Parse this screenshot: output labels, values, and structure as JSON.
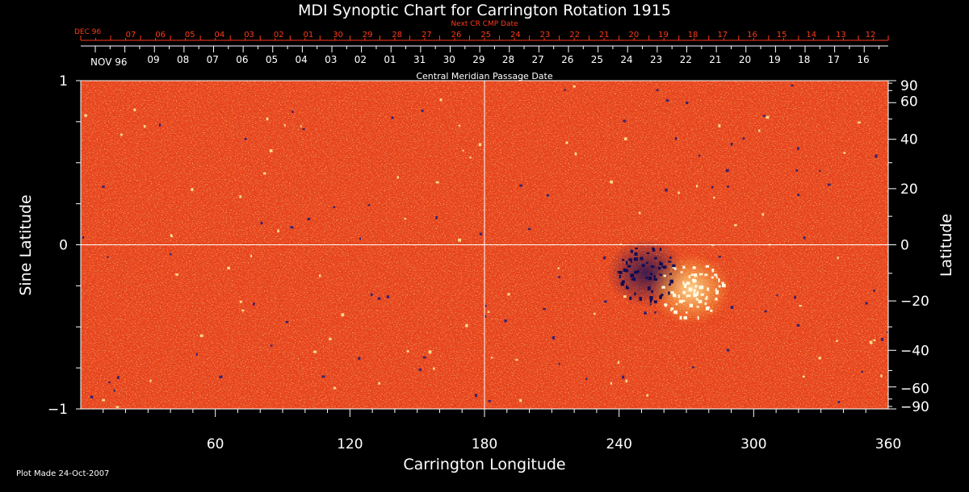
{
  "colors": {
    "background": "#000000",
    "foreground": "#ffffff",
    "next_rotation": "#ff3a1a",
    "map_base": "#e8401a",
    "map_positive": "#ffd23a",
    "map_negative": "#1a1a7a",
    "grid": "#ffffff"
  },
  "chart_data": {
    "type": "heatmap",
    "title": "MDI Synoptic Chart for Carrington Rotation 1915",
    "xlabel": "Carrington Longitude",
    "ylabel_left": "Sine Latitude",
    "ylabel_right": "Latitude",
    "xlim": [
      0,
      360
    ],
    "ylim": [
      -1,
      1
    ],
    "x_ticks": [
      60,
      120,
      180,
      240,
      300,
      360
    ],
    "y_left_ticks": [
      -1,
      0,
      1
    ],
    "y_left_tick_labels": [
      "−1",
      "0",
      "1"
    ],
    "y_right_ticks": [
      90,
      60,
      40,
      20,
      0,
      -20,
      -40,
      -60,
      -90
    ],
    "y_right_tick_labels": [
      "90",
      "60",
      "40",
      "20",
      "0",
      "−20",
      "−40",
      "−60",
      "−90"
    ],
    "grid_lines": {
      "longitude": [
        180
      ],
      "sine_latitude": [
        0
      ]
    },
    "top_axis": {
      "label": "Central Meridian Passage Date",
      "month_start_label": "NOV 96",
      "dates": [
        "09",
        "08",
        "07",
        "06",
        "05",
        "04",
        "03",
        "02",
        "01",
        "31",
        "30",
        "29",
        "28",
        "27",
        "26",
        "25",
        "24",
        "23",
        "22",
        "21",
        "20",
        "19",
        "18",
        "17",
        "16"
      ],
      "next_rotation_label": "Next CR CMP Date",
      "next_rotation_month_label": "DEC 96",
      "next_rotation_dates": [
        "07",
        "06",
        "05",
        "04",
        "03",
        "02",
        "01",
        "30",
        "29",
        "28",
        "27",
        "26",
        "25",
        "24",
        "23",
        "22",
        "21",
        "20",
        "19",
        "18",
        "17",
        "16",
        "15",
        "14",
        "13",
        "12"
      ]
    },
    "active_region": {
      "longitude_range": [
        235,
        290
      ],
      "sine_latitude_range": [
        -0.45,
        0.05
      ],
      "negative_polarity_center": [
        252,
        -0.17
      ],
      "positive_polarity_center": [
        272,
        -0.27
      ]
    }
  },
  "footer": {
    "plot_made": "Plot Made 24-Oct-2007"
  }
}
